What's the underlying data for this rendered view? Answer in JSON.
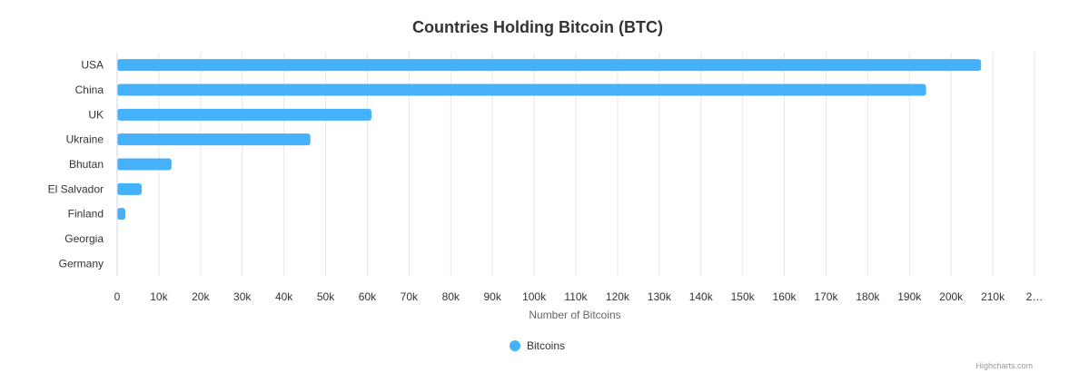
{
  "chart_data": {
    "type": "bar",
    "orientation": "horizontal",
    "title": "Countries Holding Bitcoin (BTC)",
    "categories": [
      "USA",
      "China",
      "UK",
      "Ukraine",
      "Bhutan",
      "El Salvador",
      "Finland",
      "Georgia",
      "Germany"
    ],
    "series": [
      {
        "name": "Bitcoins",
        "color": "#45b1fa",
        "values": [
          207189,
          194000,
          61000,
          46351,
          13029,
          5875,
          1981,
          66,
          0
        ]
      }
    ],
    "xlabel": "Number of Bitcoins",
    "ylabel": "",
    "xlim": [
      0,
      220000
    ],
    "tick_labels": [
      "0",
      "10k",
      "20k",
      "30k",
      "40k",
      "50k",
      "60k",
      "70k",
      "80k",
      "90k",
      "100k",
      "110k",
      "120k",
      "130k",
      "140k",
      "150k",
      "160k",
      "170k",
      "180k",
      "190k",
      "200k",
      "210k",
      "2…"
    ],
    "grid": true,
    "legend_position": "bottom-center"
  },
  "credits": "Highcharts.com"
}
